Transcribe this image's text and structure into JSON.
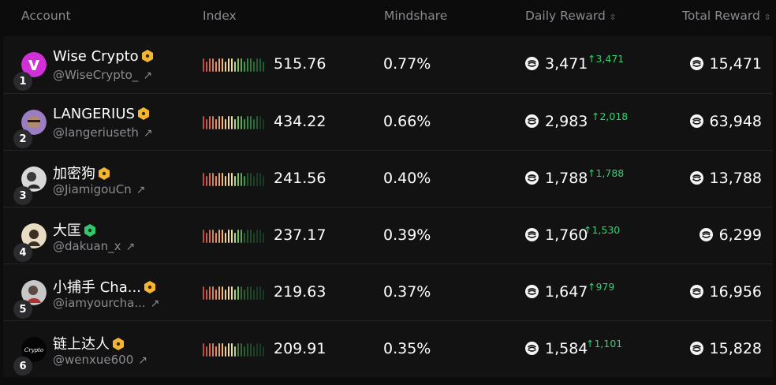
{
  "header": {
    "account": "Account",
    "index": "Index",
    "mindshare": "Mindshare",
    "daily_reward": "Daily Reward",
    "total_reward": "Total Reward"
  },
  "colors": {
    "accent_green": "#2fd36e",
    "badge_gold": "#f2b632",
    "badge_green": "#33c76a"
  },
  "rows": [
    {
      "rank": "1",
      "name": "Wise Crypto",
      "badge": "gold",
      "handle": "@WiseCrypto_",
      "index": "515.76",
      "mindshare": "0.77%",
      "daily": "3,471",
      "delta": "↑3,471",
      "total": "15,471"
    },
    {
      "rank": "2",
      "name": "LANGERIUS",
      "badge": "gold",
      "handle": "@langeriuseth",
      "index": "434.22",
      "mindshare": "0.66%",
      "daily": "2,983",
      "delta": "↑2,018",
      "total": "63,948"
    },
    {
      "rank": "3",
      "name": "加密狗",
      "badge": "gold",
      "handle": "@JiamigouCn",
      "index": "241.56",
      "mindshare": "0.40%",
      "daily": "1,788",
      "delta": "↑1,788",
      "total": "13,788"
    },
    {
      "rank": "4",
      "name": "大匡",
      "badge": "green",
      "handle": "@dakuan_x",
      "index": "237.17",
      "mindshare": "0.39%",
      "daily": "1,760",
      "delta": "↑1,530",
      "total": "6,299"
    },
    {
      "rank": "5",
      "name": "小捕手 Cha...",
      "badge": "gold",
      "handle": "@iamyourcha...",
      "index": "219.63",
      "mindshare": "0.37%",
      "daily": "1,647",
      "delta": "↑979",
      "total": "16,956"
    },
    {
      "rank": "6",
      "name": "链上达人",
      "badge": "gold",
      "handle": "@wenxue600",
      "index": "209.91",
      "mindshare": "0.35%",
      "daily": "1,584",
      "delta": "↑1,101",
      "total": "15,828"
    }
  ],
  "icons": {
    "sort": "sort-icon",
    "external": "external-link-icon",
    "coin": "coin-icon",
    "verified": "verified-badge-icon"
  }
}
